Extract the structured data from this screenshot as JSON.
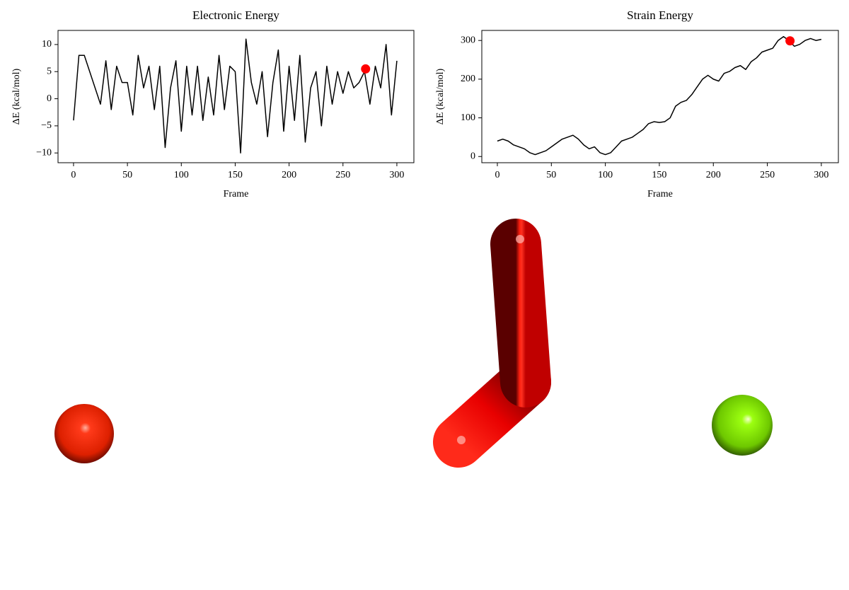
{
  "chart_data": [
    {
      "type": "line",
      "title": "Electronic Energy",
      "x_label": "Frame",
      "y_label": "ΔE (kcal/mol)",
      "xlim": [
        -14.4,
        315.8
      ],
      "xticks": [
        0,
        50,
        100,
        150,
        200,
        250,
        300
      ],
      "ylim": [
        -11.8,
        12.6
      ],
      "yticks": [
        {
          "value": -10,
          "label": "−10"
        },
        {
          "value": -5,
          "label": "−5"
        },
        0,
        5,
        10
      ],
      "series": [
        {
          "color": "#000000",
          "x": [
            0,
            5,
            10,
            15,
            20,
            25,
            30,
            35,
            40,
            45,
            50,
            55,
            60,
            65,
            70,
            75,
            80,
            85,
            90,
            95,
            100,
            105,
            110,
            115,
            120,
            125,
            130,
            135,
            140,
            145,
            150,
            155,
            160,
            165,
            170,
            175,
            180,
            185,
            190,
            195,
            200,
            205,
            210,
            215,
            220,
            225,
            230,
            235,
            240,
            245,
            250,
            255,
            260,
            265,
            270,
            275,
            280,
            285,
            290,
            295,
            300
          ],
          "values": [
            -4,
            8,
            8,
            5,
            2,
            -1,
            7,
            -2,
            6,
            3,
            3,
            -3,
            8,
            2,
            6,
            -2,
            6,
            -9,
            2,
            7,
            -6,
            6,
            -3,
            6,
            -4,
            4,
            -3,
            8,
            -2,
            6,
            5,
            -10,
            11,
            3,
            -1,
            5,
            -7,
            3,
            9,
            -6,
            6,
            -4,
            8,
            -8,
            2,
            5,
            -5,
            6,
            -1,
            5,
            1,
            5,
            2,
            3,
            5,
            -1,
            6,
            2,
            10,
            -3,
            7
          ]
        }
      ],
      "highlight": {
        "x": 271,
        "y": 5.5,
        "color": "#ff0000"
      }
    },
    {
      "type": "line",
      "title": "Strain Energy",
      "x_label": "Frame",
      "y_label": "ΔE (kcal/mol)",
      "xlim": [
        -14.4,
        315.8
      ],
      "xticks": [
        0,
        50,
        100,
        150,
        200,
        250,
        300
      ],
      "ylim": [
        -16,
        326
      ],
      "yticks": [
        0,
        100,
        200,
        300
      ],
      "series": [
        {
          "color": "#000000",
          "x": [
            0,
            5,
            10,
            15,
            20,
            25,
            30,
            35,
            40,
            45,
            50,
            55,
            60,
            65,
            70,
            75,
            80,
            85,
            90,
            95,
            100,
            105,
            110,
            115,
            120,
            125,
            130,
            135,
            140,
            145,
            150,
            155,
            160,
            165,
            170,
            175,
            180,
            185,
            190,
            195,
            200,
            205,
            210,
            215,
            220,
            225,
            230,
            235,
            240,
            245,
            250,
            255,
            260,
            265,
            270,
            275,
            280,
            285,
            290,
            295,
            300
          ],
          "values": [
            40,
            45,
            40,
            30,
            25,
            20,
            10,
            5,
            10,
            15,
            25,
            35,
            45,
            50,
            55,
            45,
            30,
            20,
            25,
            10,
            5,
            10,
            25,
            40,
            45,
            50,
            60,
            70,
            85,
            90,
            88,
            90,
            100,
            130,
            140,
            145,
            160,
            180,
            200,
            210,
            200,
            195,
            215,
            220,
            230,
            235,
            225,
            245,
            255,
            270,
            275,
            280,
            300,
            310,
            300,
            285,
            290,
            300,
            305,
            300,
            303
          ]
        }
      ],
      "highlight": {
        "x": 271,
        "y": 299,
        "color": "#ff0000"
      }
    }
  ]
}
